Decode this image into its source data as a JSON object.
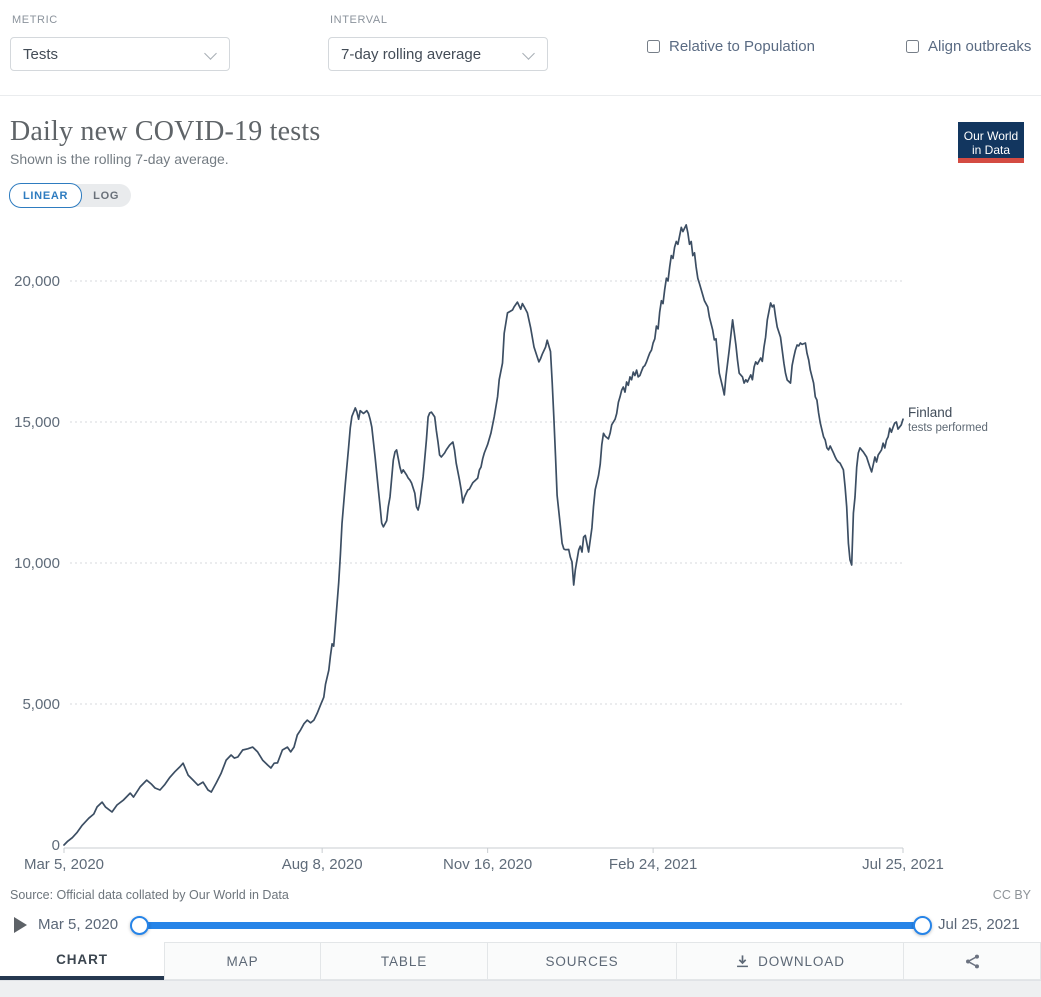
{
  "header": {
    "metric_label": "METRIC",
    "metric_value": "Tests",
    "interval_label": "INTERVAL",
    "interval_value": "7-day rolling average",
    "checkbox_population_label": "Relative to Population",
    "checkbox_align_label": "Align outbreaks"
  },
  "title": "Daily new COVID-19 tests",
  "subtitle": "Shown is the rolling 7-day average.",
  "logo": {
    "line1": "Our World",
    "line2": "in Data"
  },
  "scale_toggle": {
    "linear": "LINEAR",
    "log": "LOG",
    "active": "LINEAR"
  },
  "footer": {
    "source": "Source: Official data collated by Our World in Data",
    "license": "CC BY"
  },
  "timeline": {
    "start_date": "Mar 5, 2020",
    "end_date": "Jul 25, 2021"
  },
  "tabs": [
    {
      "label": "CHART",
      "active": true
    },
    {
      "label": "MAP",
      "active": false
    },
    {
      "label": "TABLE",
      "active": false
    },
    {
      "label": "SOURCES",
      "active": false
    },
    {
      "label": "DOWNLOAD",
      "active": false,
      "icon": "download-icon"
    },
    {
      "label": "",
      "active": false,
      "icon": "share-icon"
    }
  ],
  "colors": {
    "line": "#3c4e63",
    "slider_blue": "#2684e8",
    "linear_blue": "#2e7cc0",
    "logo_bg": "#12365f",
    "logo_bar": "#d44b42",
    "axis_text": "#5f6b79",
    "gridline": "#d7dadc"
  },
  "chart_data": {
    "type": "line",
    "title": "Daily new COVID-19 tests",
    "subtitle": "Shown is the rolling 7-day average.",
    "entity": "Finland",
    "entity_detail": "tests performed",
    "x_start_date": "2020-03-05",
    "x_end_date": "2021-07-25",
    "x_unit": "days since 2020-03-05",
    "ylim": [
      0,
      22500
    ],
    "grid": true,
    "y_ticks": [
      0,
      5000,
      10000,
      15000,
      20000
    ],
    "x_ticks": [
      {
        "label": "Mar 5, 2020",
        "day": 0
      },
      {
        "label": "Aug 8, 2020",
        "day": 156
      },
      {
        "label": "Nov 16, 2020",
        "day": 256
      },
      {
        "label": "Feb 24, 2021",
        "day": 356
      },
      {
        "label": "Jul 25, 2021",
        "day": 507
      }
    ],
    "points": [
      [
        0,
        0
      ],
      [
        2,
        120
      ],
      [
        5,
        260
      ],
      [
        8,
        450
      ],
      [
        11,
        700
      ],
      [
        15,
        950
      ],
      [
        18,
        1100
      ],
      [
        20,
        1350
      ],
      [
        23,
        1520
      ],
      [
        25,
        1350
      ],
      [
        29,
        1170
      ],
      [
        32,
        1420
      ],
      [
        36,
        1600
      ],
      [
        40,
        1840
      ],
      [
        42,
        1700
      ],
      [
        46,
        2060
      ],
      [
        50,
        2300
      ],
      [
        53,
        2150
      ],
      [
        55,
        2020
      ],
      [
        58,
        1950
      ],
      [
        61,
        2150
      ],
      [
        64,
        2400
      ],
      [
        67,
        2600
      ],
      [
        70,
        2770
      ],
      [
        72,
        2900
      ],
      [
        75,
        2480
      ],
      [
        78,
        2300
      ],
      [
        81,
        2120
      ],
      [
        84,
        2230
      ],
      [
        87,
        1950
      ],
      [
        89,
        1880
      ],
      [
        92,
        2200
      ],
      [
        95,
        2550
      ],
      [
        98,
        3010
      ],
      [
        101,
        3190
      ],
      [
        103,
        3080
      ],
      [
        105,
        3120
      ],
      [
        108,
        3370
      ],
      [
        111,
        3410
      ],
      [
        114,
        3470
      ],
      [
        117,
        3300
      ],
      [
        120,
        3010
      ],
      [
        123,
        2840
      ],
      [
        125,
        2730
      ],
      [
        127,
        2900
      ],
      [
        129,
        2910
      ],
      [
        132,
        3370
      ],
      [
        135,
        3470
      ],
      [
        137,
        3300
      ],
      [
        139,
        3470
      ],
      [
        141,
        3900
      ],
      [
        143,
        4080
      ],
      [
        145,
        4300
      ],
      [
        147,
        4430
      ],
      [
        149,
        4330
      ],
      [
        151,
        4430
      ],
      [
        153,
        4670
      ],
      [
        155,
        4960
      ],
      [
        157,
        5240
      ],
      [
        158,
        5700
      ],
      [
        160,
        6200
      ],
      [
        161,
        6700
      ],
      [
        162,
        7130
      ],
      [
        163,
        7050
      ],
      [
        164,
        7800
      ],
      [
        166,
        9300
      ],
      [
        167,
        10300
      ],
      [
        168,
        11400
      ],
      [
        170,
        12800
      ],
      [
        172,
        14100
      ],
      [
        173,
        14800
      ],
      [
        174,
        15200
      ],
      [
        176,
        15500
      ],
      [
        177,
        15350
      ],
      [
        178,
        15100
      ],
      [
        179,
        15400
      ],
      [
        181,
        15300
      ],
      [
        183,
        15400
      ],
      [
        184,
        15300
      ],
      [
        185,
        15100
      ],
      [
        186,
        14820
      ],
      [
        188,
        13760
      ],
      [
        190,
        12590
      ],
      [
        191,
        12000
      ],
      [
        192,
        11410
      ],
      [
        193,
        11280
      ],
      [
        195,
        11500
      ],
      [
        196,
        12000
      ],
      [
        197,
        12340
      ],
      [
        199,
        13650
      ],
      [
        200,
        13940
      ],
      [
        201,
        14010
      ],
      [
        202,
        13700
      ],
      [
        203,
        13400
      ],
      [
        204,
        13190
      ],
      [
        205,
        13300
      ],
      [
        207,
        13120
      ],
      [
        208,
        13010
      ],
      [
        209,
        12940
      ],
      [
        210,
        12840
      ],
      [
        212,
        12480
      ],
      [
        213,
        11990
      ],
      [
        214,
        11880
      ],
      [
        215,
        12130
      ],
      [
        216,
        12590
      ],
      [
        217,
        13050
      ],
      [
        218,
        13720
      ],
      [
        219,
        14360
      ],
      [
        220,
        15180
      ],
      [
        221,
        15320
      ],
      [
        222,
        15350
      ],
      [
        224,
        15180
      ],
      [
        225,
        14710
      ],
      [
        226,
        14290
      ],
      [
        227,
        13830
      ],
      [
        228,
        13760
      ],
      [
        230,
        13900
      ],
      [
        231,
        14010
      ],
      [
        233,
        14180
      ],
      [
        235,
        14290
      ],
      [
        236,
        14010
      ],
      [
        237,
        13540
      ],
      [
        239,
        12940
      ],
      [
        240,
        12590
      ],
      [
        241,
        12130
      ],
      [
        242,
        12340
      ],
      [
        244,
        12590
      ],
      [
        245,
        12620
      ],
      [
        247,
        12840
      ],
      [
        248,
        12900
      ],
      [
        250,
        13010
      ],
      [
        251,
        13300
      ],
      [
        252,
        13400
      ],
      [
        253,
        13700
      ],
      [
        254,
        13900
      ],
      [
        256,
        14200
      ],
      [
        258,
        14600
      ],
      [
        260,
        15200
      ],
      [
        262,
        15900
      ],
      [
        263,
        16500
      ],
      [
        265,
        17090
      ],
      [
        266,
        18150
      ],
      [
        268,
        18870
      ],
      [
        271,
        18970
      ],
      [
        272,
        19080
      ],
      [
        274,
        19250
      ],
      [
        276,
        19000
      ],
      [
        277,
        19200
      ],
      [
        278,
        19100
      ],
      [
        280,
        18870
      ],
      [
        282,
        18330
      ],
      [
        284,
        17660
      ],
      [
        286,
        17300
      ],
      [
        287,
        17130
      ],
      [
        288,
        17250
      ],
      [
        289,
        17400
      ],
      [
        291,
        17660
      ],
      [
        292,
        17900
      ],
      [
        294,
        17500
      ],
      [
        295,
        16400
      ],
      [
        296,
        15200
      ],
      [
        297,
        13800
      ],
      [
        298,
        12400
      ],
      [
        300,
        11300
      ],
      [
        301,
        10700
      ],
      [
        302,
        10500
      ],
      [
        303,
        10470
      ],
      [
        305,
        10480
      ],
      [
        306,
        10200
      ],
      [
        307,
        10040
      ],
      [
        308,
        9220
      ],
      [
        309,
        9750
      ],
      [
        311,
        10460
      ],
      [
        312,
        10600
      ],
      [
        313,
        10390
      ],
      [
        314,
        10920
      ],
      [
        315,
        10980
      ],
      [
        317,
        10390
      ],
      [
        318,
        10800
      ],
      [
        319,
        11240
      ],
      [
        320,
        12000
      ],
      [
        321,
        12600
      ],
      [
        323,
        13100
      ],
      [
        324,
        13500
      ],
      [
        325,
        14200
      ],
      [
        326,
        14600
      ],
      [
        327,
        14500
      ],
      [
        329,
        14400
      ],
      [
        330,
        14600
      ],
      [
        331,
        14900
      ],
      [
        333,
        15100
      ],
      [
        334,
        15300
      ],
      [
        335,
        15700
      ],
      [
        336,
        15890
      ],
      [
        337,
        16130
      ],
      [
        338,
        16240
      ],
      [
        339,
        16060
      ],
      [
        340,
        16420
      ],
      [
        341,
        16300
      ],
      [
        342,
        16600
      ],
      [
        343,
        16500
      ],
      [
        344,
        16770
      ],
      [
        345,
        16650
      ],
      [
        346,
        16840
      ],
      [
        347,
        16600
      ],
      [
        348,
        16650
      ],
      [
        349,
        16800
      ],
      [
        350,
        16950
      ],
      [
        351,
        17000
      ],
      [
        352,
        17130
      ],
      [
        353,
        17300
      ],
      [
        354,
        17450
      ],
      [
        355,
        17550
      ],
      [
        356,
        17800
      ],
      [
        357,
        17950
      ],
      [
        358,
        18400
      ],
      [
        359,
        18300
      ],
      [
        360,
        18900
      ],
      [
        361,
        19300
      ],
      [
        362,
        19200
      ],
      [
        363,
        19700
      ],
      [
        364,
        20100
      ],
      [
        365,
        20000
      ],
      [
        366,
        20500
      ],
      [
        367,
        20900
      ],
      [
        368,
        20800
      ],
      [
        369,
        21200
      ],
      [
        370,
        21400
      ],
      [
        371,
        21300
      ],
      [
        372,
        21600
      ],
      [
        373,
        21900
      ],
      [
        374,
        21750
      ],
      [
        376,
        21990
      ],
      [
        377,
        21700
      ],
      [
        378,
        21300
      ],
      [
        379,
        21400
      ],
      [
        380,
        20900
      ],
      [
        381,
        21000
      ],
      [
        382,
        20500
      ],
      [
        383,
        20100
      ],
      [
        384,
        19900
      ],
      [
        386,
        19500
      ],
      [
        387,
        19300
      ],
      [
        389,
        19080
      ],
      [
        390,
        18720
      ],
      [
        392,
        18260
      ],
      [
        393,
        17910
      ],
      [
        394,
        17950
      ],
      [
        395,
        17300
      ],
      [
        396,
        16730
      ],
      [
        398,
        16240
      ],
      [
        399,
        15960
      ],
      [
        400,
        16600
      ],
      [
        401,
        17090
      ],
      [
        402,
        17550
      ],
      [
        404,
        18620
      ],
      [
        405,
        18190
      ],
      [
        406,
        17730
      ],
      [
        407,
        17200
      ],
      [
        408,
        16730
      ],
      [
        410,
        16600
      ],
      [
        411,
        16380
      ],
      [
        412,
        16500
      ],
      [
        413,
        16420
      ],
      [
        415,
        16670
      ],
      [
        416,
        16500
      ],
      [
        417,
        16950
      ],
      [
        418,
        17130
      ],
      [
        419,
        17050
      ],
      [
        421,
        17270
      ],
      [
        422,
        17150
      ],
      [
        423,
        17660
      ],
      [
        424,
        18010
      ],
      [
        425,
        18620
      ],
      [
        427,
        19220
      ],
      [
        428,
        19080
      ],
      [
        429,
        19150
      ],
      [
        430,
        18720
      ],
      [
        431,
        18370
      ],
      [
        433,
        18010
      ],
      [
        434,
        17550
      ],
      [
        435,
        17090
      ],
      [
        436,
        16730
      ],
      [
        437,
        16490
      ],
      [
        439,
        16380
      ],
      [
        440,
        17000
      ],
      [
        441,
        17300
      ],
      [
        442,
        17550
      ],
      [
        443,
        17730
      ],
      [
        444,
        17700
      ],
      [
        445,
        17800
      ],
      [
        446,
        17750
      ],
      [
        448,
        17800
      ],
      [
        449,
        17440
      ],
      [
        450,
        17200
      ],
      [
        451,
        16840
      ],
      [
        453,
        16380
      ],
      [
        454,
        15890
      ],
      [
        455,
        15780
      ],
      [
        456,
        15320
      ],
      [
        457,
        14960
      ],
      [
        459,
        14470
      ],
      [
        460,
        14360
      ],
      [
        461,
        14080
      ],
      [
        462,
        14010
      ],
      [
        463,
        14150
      ],
      [
        465,
        13900
      ],
      [
        466,
        13760
      ],
      [
        467,
        13650
      ],
      [
        468,
        13580
      ],
      [
        469,
        13540
      ],
      [
        471,
        13300
      ],
      [
        472,
        12700
      ],
      [
        473,
        11990
      ],
      [
        474,
        10700
      ],
      [
        475,
        10110
      ],
      [
        476,
        9930
      ],
      [
        477,
        11770
      ],
      [
        478,
        12340
      ],
      [
        479,
        13400
      ],
      [
        480,
        13900
      ],
      [
        481,
        14080
      ],
      [
        482,
        14010
      ],
      [
        483,
        13940
      ],
      [
        485,
        13760
      ],
      [
        486,
        13580
      ],
      [
        487,
        13400
      ],
      [
        488,
        13230
      ],
      [
        489,
        13480
      ],
      [
        490,
        13760
      ],
      [
        491,
        13580
      ],
      [
        492,
        13830
      ],
      [
        494,
        14010
      ],
      [
        495,
        14250
      ],
      [
        496,
        14080
      ],
      [
        497,
        14360
      ],
      [
        498,
        14470
      ],
      [
        499,
        14780
      ],
      [
        500,
        14640
      ],
      [
        501,
        14820
      ],
      [
        502,
        14960
      ],
      [
        503,
        15000
      ],
      [
        504,
        14750
      ],
      [
        506,
        14900
      ],
      [
        507,
        15100
      ]
    ]
  }
}
